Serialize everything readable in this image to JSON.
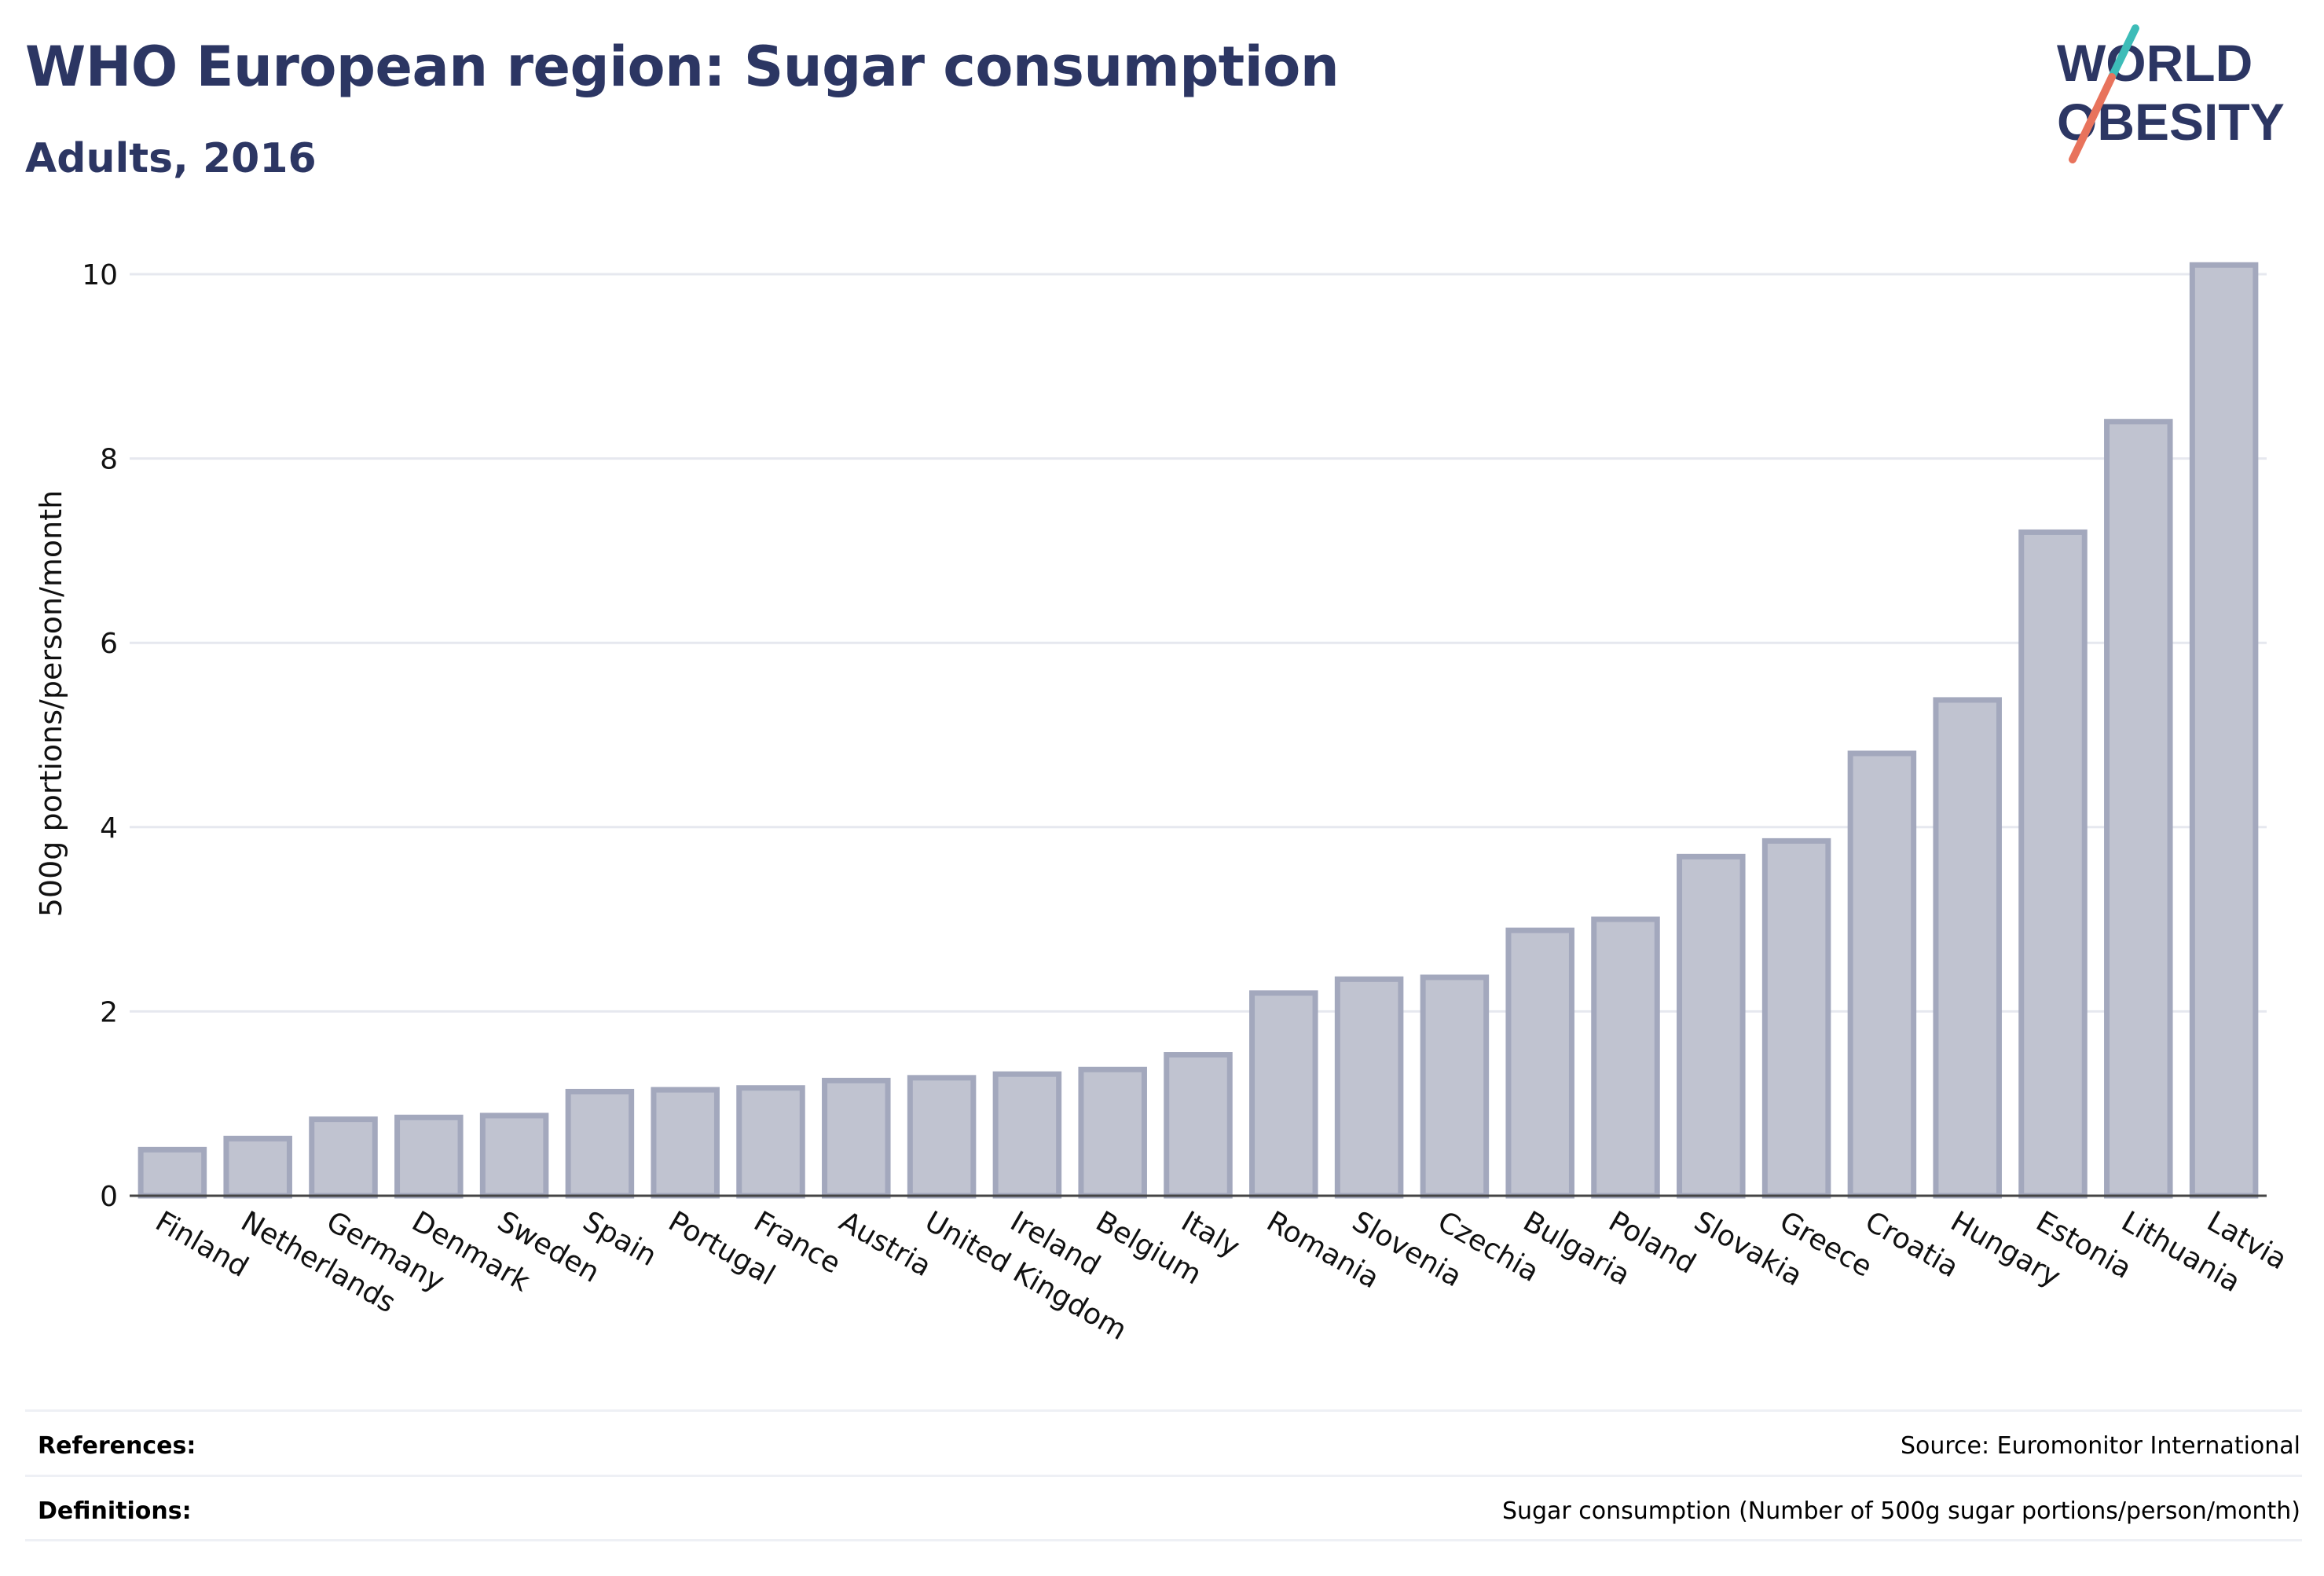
{
  "header": {
    "title": "WHO European region: Sugar consumption",
    "subtitle": "Adults, 2016"
  },
  "logo": {
    "line1": "WORLD",
    "line2": "OBESITY",
    "text_color": "#2c3663",
    "accent_teal": "#3dbcb8",
    "accent_coral": "#e8735c"
  },
  "chart_data": {
    "type": "bar",
    "categories": [
      "Finland",
      "Netherlands",
      "Germany",
      "Denmark",
      "Sweden",
      "Spain",
      "Portugal",
      "France",
      "Austria",
      "United Kingdom",
      "Ireland",
      "Belgium",
      "Italy",
      "Romania",
      "Slovenia",
      "Czechia",
      "Bulgaria",
      "Poland",
      "Slovakia",
      "Greece",
      "Croatia",
      "Hungary",
      "Estonia",
      "Lithuania",
      "Latvia"
    ],
    "values": [
      0.5,
      0.62,
      0.83,
      0.85,
      0.87,
      1.13,
      1.15,
      1.17,
      1.25,
      1.28,
      1.32,
      1.37,
      1.53,
      2.2,
      2.35,
      2.37,
      2.88,
      3.0,
      3.68,
      3.85,
      4.8,
      5.38,
      7.2,
      8.4,
      10.1
    ],
    "ylabel": "500g portions/person/month",
    "xlabel": "",
    "ylim": [
      0,
      10
    ],
    "yticks": [
      0,
      2,
      4,
      6,
      8,
      10
    ],
    "grid": true,
    "legend": "none",
    "bar_fill": "#c0c3d0",
    "bar_stroke": "#a3a8bd"
  },
  "footer": {
    "references_label": "References:",
    "references_value": "Source: Euromonitor International",
    "definitions_label": "Definitions:",
    "definitions_value": "Sugar consumption (Number of 500g sugar portions/person/month)"
  }
}
